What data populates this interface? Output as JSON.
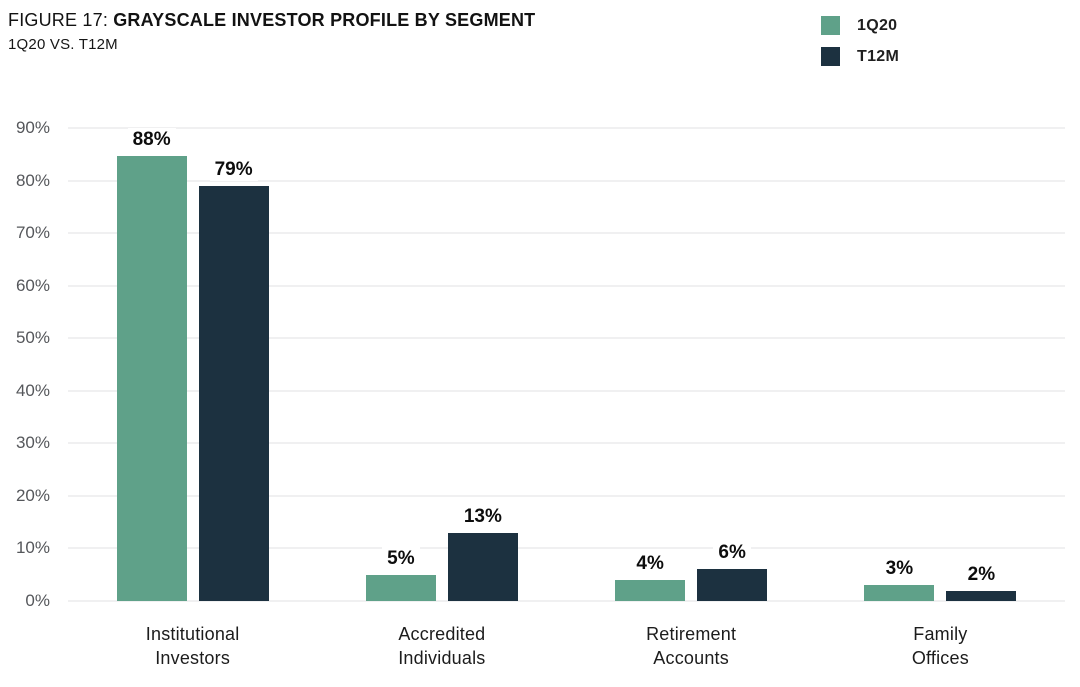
{
  "header": {
    "figure_label": "FIGURE 17: ",
    "title": "GRAYSCALE INVESTOR PROFILE BY SEGMENT",
    "subtitle": "1Q20 VS. T12M"
  },
  "legend": {
    "items": [
      {
        "label": "1Q20",
        "color": "#5fa189"
      },
      {
        "label": "T12M",
        "color": "#1c3140"
      }
    ]
  },
  "chart_data": {
    "type": "bar",
    "title": "FIGURE 17: GRAYSCALE INVESTOR PROFILE BY SEGMENT",
    "subtitle": "1Q20 VS. T12M",
    "categories": [
      "Institutional Investors",
      "Accredited Individuals",
      "Retirement Accounts",
      "Family Offices"
    ],
    "series": [
      {
        "name": "1Q20",
        "color": "#5fa189",
        "values": [
          88,
          5,
          4,
          3
        ],
        "labels": [
          "88%",
          "5%",
          "4%",
          "3%"
        ]
      },
      {
        "name": "T12M",
        "color": "#1c3140",
        "values": [
          79,
          13,
          6,
          2
        ],
        "labels": [
          "79%",
          "13%",
          "6%",
          "2%"
        ]
      }
    ],
    "xlabel": "",
    "ylabel": "",
    "ylim": [
      0,
      90
    ],
    "y_ticks": [
      "90%",
      "80%",
      "70%",
      "60%",
      "50%",
      "40%",
      "30%",
      "20%",
      "10%",
      "0%"
    ],
    "grid": true,
    "legend_position": "top-right",
    "gridline_color": "#e1e2e3",
    "tick_label_color": "#55575b"
  },
  "display": {
    "category_labels": [
      "Institutional\nInvestors",
      "Accredited\nIndividuals",
      "Retirement\nAccounts",
      "Family\nOffices"
    ]
  }
}
